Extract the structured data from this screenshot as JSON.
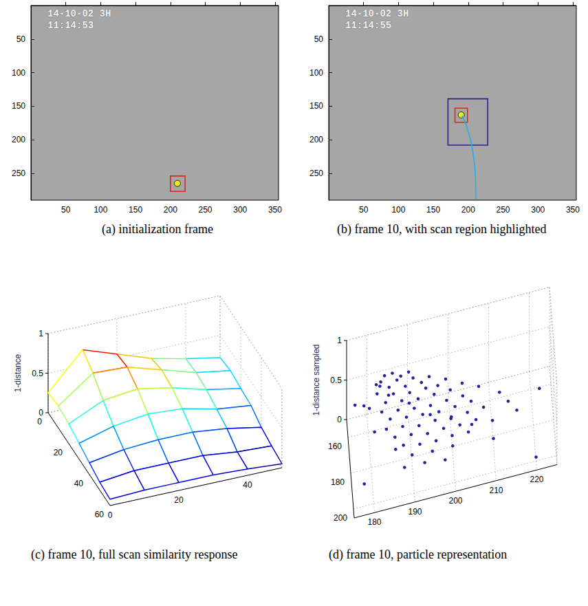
{
  "chart_data": [
    {
      "type": "image",
      "title": "(a) initialization frame",
      "overlay_text": [
        "14-10-02 3H",
        "11:14:53"
      ],
      "xlim": [
        0,
        355
      ],
      "ylim": [
        0,
        290
      ],
      "xticks": [
        50,
        100,
        150,
        200,
        250,
        300,
        350
      ],
      "yticks": [
        50,
        100,
        150,
        200,
        250
      ],
      "target_box": {
        "x": [
          200,
          221
        ],
        "y": [
          254,
          277
        ],
        "color": "#e8221c"
      },
      "target_center": {
        "x": 210,
        "y": 265,
        "color": "#ffff00"
      }
    },
    {
      "type": "image",
      "title": "(b) frame 10, with scan region highlighted",
      "overlay_text": [
        "14-10-02 3H",
        "11:14:55"
      ],
      "xlim": [
        0,
        355
      ],
      "ylim": [
        0,
        290
      ],
      "xticks": [
        50,
        100,
        150,
        200,
        250,
        300,
        350
      ],
      "yticks": [
        50,
        100,
        150,
        200,
        250
      ],
      "scan_region": {
        "x": [
          171,
          228
        ],
        "y": [
          139,
          208
        ],
        "color": "#2020a0"
      },
      "trajectory": {
        "x": [
          211,
          210,
          207,
          202,
          196,
          191
        ],
        "y": [
          288,
          250,
          220,
          195,
          175,
          164
        ],
        "color": "#22aee6"
      },
      "target_box": {
        "x": [
          181,
          199
        ],
        "y": [
          153,
          174
        ],
        "color": "#e8221c"
      },
      "target_center": {
        "x": 190,
        "y": 163,
        "color": "#ffff00"
      }
    },
    {
      "type": "surface",
      "title": "(c) frame 10, full scan similarity response",
      "zlabel": "1-distance",
      "xlim": [
        0,
        50
      ],
      "ylim": [
        0,
        60
      ],
      "zlim": [
        0,
        1
      ],
      "xticks": [
        0,
        20,
        40
      ],
      "yticks": [
        0,
        20,
        40,
        60
      ],
      "zticks": [
        0,
        0.5,
        1
      ],
      "grid": true,
      "x": [
        0,
        10,
        20,
        30,
        40,
        50
      ],
      "y": [
        0,
        10,
        20,
        30,
        40,
        50,
        60
      ],
      "z": [
        [
          0.25,
          0.7,
          0.55,
          0.4,
          0.3,
          0.22
        ],
        [
          0.28,
          0.6,
          0.58,
          0.45,
          0.32,
          0.25
        ],
        [
          0.25,
          0.45,
          0.5,
          0.42,
          0.3,
          0.22
        ],
        [
          0.2,
          0.32,
          0.38,
          0.35,
          0.25,
          0.2
        ],
        [
          0.15,
          0.22,
          0.25,
          0.25,
          0.2,
          0.12
        ],
        [
          0.1,
          0.15,
          0.15,
          0.15,
          0.1,
          0.08
        ],
        [
          0.08,
          0.1,
          0.1,
          0.1,
          0.08,
          0.05
        ]
      ]
    },
    {
      "type": "scatter3d",
      "title": "(d) frame 10, particle representation",
      "zlabel": "1-distance sampled",
      "xlim": [
        175,
        225
      ],
      "ylim": [
        150,
        205
      ],
      "zlim": [
        0,
        1
      ],
      "xticks": [
        180,
        190,
        200,
        210,
        220
      ],
      "yticks": [
        160,
        180,
        200
      ],
      "zticks": [
        0,
        0.5,
        1
      ],
      "grid": true,
      "color": "#24249a",
      "marker": "circle",
      "points": {
        "x": [
          186,
          184,
          188,
          190,
          183,
          187,
          191,
          185,
          189,
          193,
          182,
          186,
          190,
          194,
          197,
          184,
          188,
          192,
          196,
          200,
          183,
          187,
          191,
          195,
          199,
          203,
          185,
          189,
          193,
          197,
          201,
          205,
          184,
          188,
          192,
          196,
          200,
          204,
          208,
          186,
          190,
          194,
          198,
          202,
          206,
          188,
          192,
          196,
          200,
          204,
          210,
          190,
          195,
          200,
          186,
          181,
          180,
          182,
          195,
          199,
          203,
          207,
          212,
          214,
          216,
          193,
          188,
          198,
          185,
          190,
          195,
          200,
          205,
          179,
          183,
          178,
          222,
          220,
          210,
          177
        ],
        "y": [
          158,
          160,
          160,
          158,
          162,
          162,
          161,
          164,
          164,
          163,
          165,
          166,
          166,
          165,
          164,
          168,
          168,
          168,
          167,
          166,
          170,
          170,
          170,
          170,
          169,
          168,
          172,
          172,
          172,
          172,
          171,
          170,
          174,
          174,
          175,
          174,
          174,
          173,
          172,
          177,
          177,
          178,
          177,
          177,
          176,
          180,
          181,
          181,
          180,
          180,
          178,
          184,
          184,
          184,
          182,
          176,
          168,
          159,
          160,
          162,
          164,
          166,
          170,
          174,
          178,
          187,
          188,
          188,
          160,
          163,
          168,
          171,
          175,
          158,
          156,
          190,
          165,
          200,
          185,
          152
        ],
        "z": [
          0.62,
          0.66,
          0.6,
          0.58,
          0.64,
          0.61,
          0.56,
          0.59,
          0.55,
          0.52,
          0.57,
          0.54,
          0.5,
          0.48,
          0.45,
          0.5,
          0.47,
          0.44,
          0.42,
          0.4,
          0.44,
          0.41,
          0.38,
          0.36,
          0.35,
          0.33,
          0.37,
          0.34,
          0.32,
          0.3,
          0.29,
          0.28,
          0.3,
          0.28,
          0.26,
          0.25,
          0.24,
          0.22,
          0.21,
          0.24,
          0.22,
          0.2,
          0.19,
          0.18,
          0.17,
          0.18,
          0.16,
          0.15,
          0.14,
          0.13,
          0.15,
          0.12,
          0.1,
          0.1,
          0.2,
          0.35,
          0.48,
          0.55,
          0.5,
          0.46,
          0.4,
          0.35,
          0.3,
          0.25,
          0.2,
          0.05,
          0.08,
          0.04,
          0.4,
          0.3,
          0.2,
          0.15,
          0.1,
          0.3,
          0.45,
          0.05,
          0.1,
          0.05,
          0.08,
          0.2
        ]
      }
    }
  ]
}
